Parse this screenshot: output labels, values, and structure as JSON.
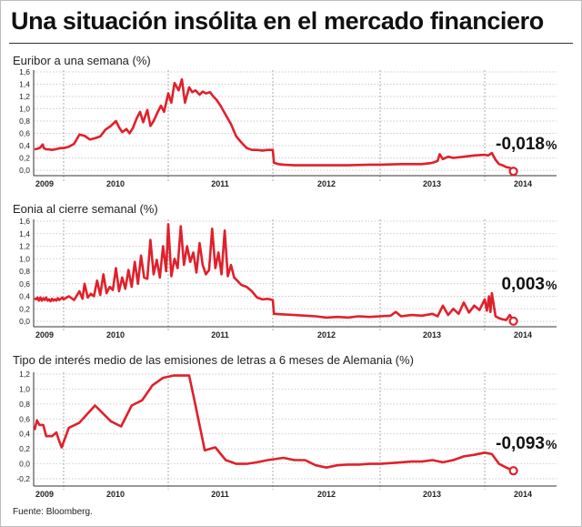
{
  "headline": "Una situación insólita en el mercado financiero",
  "source": "Fuente: Bloomberg.",
  "colors": {
    "line": "#e0202b",
    "grid": "#bbbbbb",
    "axis": "#333333"
  },
  "chart_data": [
    {
      "type": "line",
      "title": "Euribor a una semana (%)",
      "yticks": [
        "0,0",
        "0,2",
        "0,4",
        "0,6",
        "0,8",
        "1,0",
        "1,2",
        "1,4",
        "1,6"
      ],
      "ylim": [
        0,
        1.6
      ],
      "xticks": [
        "2009",
        "2010",
        "2011",
        "2012",
        "2013",
        "2014"
      ],
      "xlim": [
        2009.0,
        2014.4
      ],
      "callout": {
        "value": "-0,018",
        "unit": "%"
      },
      "series": [
        {
          "x": [
            2009.0,
            2009.1,
            2009.2,
            2009.28,
            2009.32,
            2009.4,
            2009.5,
            2009.6,
            2009.7,
            2009.8,
            2009.9,
            2010.0,
            2010.05,
            2010.1,
            2010.15,
            2010.2,
            2010.25,
            2010.3,
            2010.35,
            2010.4,
            2010.45,
            2010.5,
            2010.53,
            2010.56,
            2010.6,
            2010.63,
            2010.66,
            2010.7,
            2010.73,
            2010.76,
            2010.8,
            2010.83,
            2010.86,
            2010.9,
            2010.93,
            2010.96,
            2011.0,
            2011.03,
            2011.06,
            2011.1,
            2011.13,
            2011.16,
            2011.2,
            2011.23,
            2011.26,
            2011.3,
            2011.33,
            2011.36,
            2011.4,
            2011.43,
            2011.46,
            2011.5,
            2011.55,
            2011.6,
            2011.65,
            2011.7,
            2011.75,
            2011.8,
            2011.85,
            2011.9,
            2011.95,
            2012.0,
            2012.01,
            2012.05,
            2012.1,
            2012.2,
            2012.3,
            2012.5,
            2012.7,
            2012.9,
            2013.0,
            2013.2,
            2013.4,
            2013.5,
            2013.55,
            2013.57,
            2013.6,
            2013.65,
            2013.7,
            2013.8,
            2013.9,
            2014.0,
            2014.05,
            2014.1,
            2014.15,
            2014.2,
            2014.25,
            2014.3,
            2014.35,
            2014.4
          ],
          "y": [
            0.34,
            0.35,
            0.37,
            0.42,
            0.36,
            0.34,
            0.34,
            0.33,
            0.34,
            0.35,
            0.36,
            0.36,
            0.38,
            0.43,
            0.58,
            0.56,
            0.5,
            0.52,
            0.55,
            0.66,
            0.72,
            0.8,
            0.7,
            0.62,
            0.67,
            0.6,
            0.68,
            0.85,
            0.95,
            0.78,
            0.98,
            0.72,
            0.8,
            0.95,
            1.05,
            0.95,
            1.25,
            1.1,
            1.42,
            1.3,
            1.48,
            1.1,
            1.35,
            1.27,
            1.3,
            1.23,
            1.28,
            1.25,
            1.27,
            1.2,
            1.15,
            1.05,
            0.9,
            0.75,
            0.55,
            0.45,
            0.36,
            0.33,
            0.33,
            0.32,
            0.33,
            0.33,
            0.12,
            0.1,
            0.09,
            0.08,
            0.08,
            0.08,
            0.08,
            0.09,
            0.09,
            0.1,
            0.1,
            0.12,
            0.15,
            0.26,
            0.18,
            0.22,
            0.2,
            0.22,
            0.24,
            0.25,
            0.24,
            0.28,
            0.17,
            0.1,
            0.08,
            0.05,
            0.04,
            -0.018
          ]
        }
      ]
    },
    {
      "type": "line",
      "title": "Eonia al cierre semanal (%)",
      "yticks": [
        "0,0",
        "0,2",
        "0,4",
        "0,6",
        "0,8",
        "1,0",
        "1,2",
        "1,4",
        "1,6"
      ],
      "ylim": [
        0,
        1.6
      ],
      "xticks": [
        "2009",
        "2010",
        "2011",
        "2012",
        "2013",
        "2014"
      ],
      "xlim": [
        2009.0,
        2014.4
      ],
      "callout": {
        "value": "0,003",
        "unit": "%"
      },
      "series": [
        {
          "x": [
            2009.0,
            2009.05,
            2009.1,
            2009.15,
            2009.2,
            2009.25,
            2009.3,
            2009.35,
            2009.4,
            2009.45,
            2009.5,
            2009.55,
            2009.6,
            2009.65,
            2009.7,
            2009.75,
            2009.8,
            2009.85,
            2009.9,
            2009.95,
            2010.0,
            2010.05,
            2010.1,
            2010.15,
            2010.18,
            2010.2,
            2010.23,
            2010.26,
            2010.29,
            2010.32,
            2010.35,
            2010.38,
            2010.41,
            2010.44,
            2010.47,
            2010.5,
            2010.53,
            2010.56,
            2010.59,
            2010.62,
            2010.65,
            2010.68,
            2010.71,
            2010.74,
            2010.77,
            2010.8,
            2010.83,
            2010.86,
            2010.89,
            2010.92,
            2010.95,
            2010.98,
            2011.0,
            2011.03,
            2011.06,
            2011.09,
            2011.12,
            2011.15,
            2011.18,
            2011.21,
            2011.24,
            2011.27,
            2011.3,
            2011.33,
            2011.36,
            2011.39,
            2011.42,
            2011.45,
            2011.48,
            2011.51,
            2011.54,
            2011.57,
            2011.6,
            2011.63,
            2011.66,
            2011.7,
            2011.75,
            2011.8,
            2011.85,
            2011.9,
            2011.95,
            2012.0,
            2012.01,
            2012.1,
            2012.2,
            2012.3,
            2012.4,
            2012.5,
            2012.6,
            2012.7,
            2012.8,
            2012.9,
            2013.0,
            2013.1,
            2013.15,
            2013.2,
            2013.3,
            2013.4,
            2013.5,
            2013.55,
            2013.6,
            2013.65,
            2013.7,
            2013.75,
            2013.8,
            2013.85,
            2013.9,
            2013.95,
            2014.0,
            2014.03,
            2014.06,
            2014.08,
            2014.1,
            2014.15,
            2014.2,
            2014.25,
            2014.3,
            2014.35,
            2014.4
          ],
          "y": [
            0.37,
            0.35,
            0.38,
            0.33,
            0.38,
            0.33,
            0.37,
            0.34,
            0.38,
            0.33,
            0.35,
            0.32,
            0.36,
            0.33,
            0.35,
            0.33,
            0.37,
            0.34,
            0.36,
            0.38,
            0.35,
            0.4,
            0.34,
            0.48,
            0.36,
            0.6,
            0.38,
            0.44,
            0.4,
            0.65,
            0.42,
            0.75,
            0.45,
            0.55,
            0.5,
            0.85,
            0.48,
            0.7,
            0.52,
            0.82,
            0.55,
            0.95,
            0.6,
            1.05,
            0.7,
            0.68,
            1.3,
            0.75,
            0.98,
            0.7,
            1.2,
            0.8,
            1.55,
            0.72,
            1.0,
            0.85,
            1.52,
            0.9,
            1.2,
            0.95,
            1.1,
            0.78,
            1.25,
            0.9,
            0.75,
            0.82,
            1.48,
            0.85,
            1.1,
            0.75,
            1.45,
            0.72,
            0.9,
            0.7,
            0.65,
            0.58,
            0.55,
            0.48,
            0.38,
            0.35,
            0.36,
            0.34,
            0.12,
            0.11,
            0.1,
            0.09,
            0.08,
            0.06,
            0.07,
            0.06,
            0.08,
            0.07,
            0.08,
            0.09,
            0.15,
            0.08,
            0.1,
            0.09,
            0.12,
            0.08,
            0.25,
            0.1,
            0.2,
            0.12,
            0.3,
            0.14,
            0.25,
            0.18,
            0.35,
            0.17,
            0.4,
            0.15,
            0.45,
            0.08,
            0.05,
            0.03,
            0.02,
            0.1,
            0.003
          ]
        }
      ]
    },
    {
      "type": "line",
      "title": "Tipo de interés medio de las emisiones de letras a 6 meses de Alemania (%)",
      "yticks": [
        "-0,2",
        "0,0",
        "0,2",
        "0,4",
        "0,6",
        "0,8",
        "1,0",
        "1,2"
      ],
      "ylim": [
        -0.2,
        1.2
      ],
      "xticks": [
        "2009",
        "2010",
        "2011",
        "2012",
        "2013",
        "2014"
      ],
      "xlim": [
        2009.0,
        2014.4
      ],
      "callout": {
        "value": "-0,093",
        "unit": "%"
      },
      "series": [
        {
          "x": [
            2009.0,
            2009.08,
            2009.17,
            2009.3,
            2009.4,
            2009.6,
            2009.75,
            2009.85,
            2009.93,
            2010.05,
            2010.15,
            2010.3,
            2010.45,
            2010.55,
            2010.65,
            2010.75,
            2010.85,
            2010.95,
            2011.05,
            2011.1,
            2011.2,
            2011.25,
            2011.35,
            2011.45,
            2011.55,
            2011.65,
            2011.75,
            2011.85,
            2011.95,
            2012.1,
            2012.2,
            2012.3,
            2012.4,
            2012.5,
            2012.6,
            2012.7,
            2012.8,
            2012.9,
            2013.0,
            2013.1,
            2013.2,
            2013.3,
            2013.4,
            2013.5,
            2013.6,
            2013.7,
            2013.8,
            2013.9,
            2014.0,
            2014.1,
            2014.2,
            2014.3,
            2014.4
          ],
          "y": [
            0.45,
            0.58,
            0.52,
            0.52,
            0.37,
            0.37,
            0.42,
            0.3,
            0.22,
            0.48,
            0.55,
            0.78,
            0.57,
            0.5,
            0.78,
            0.85,
            1.05,
            1.15,
            1.18,
            1.18,
            1.18,
            0.85,
            0.18,
            0.22,
            0.05,
            0.0,
            0.0,
            0.02,
            0.05,
            0.08,
            0.05,
            0.05,
            -0.02,
            -0.05,
            -0.02,
            -0.01,
            -0.01,
            0.0,
            0.0,
            0.01,
            0.02,
            0.03,
            0.03,
            0.05,
            0.02,
            0.05,
            0.1,
            0.12,
            0.15,
            0.13,
            0.0,
            -0.05,
            -0.093
          ]
        }
      ]
    }
  ]
}
